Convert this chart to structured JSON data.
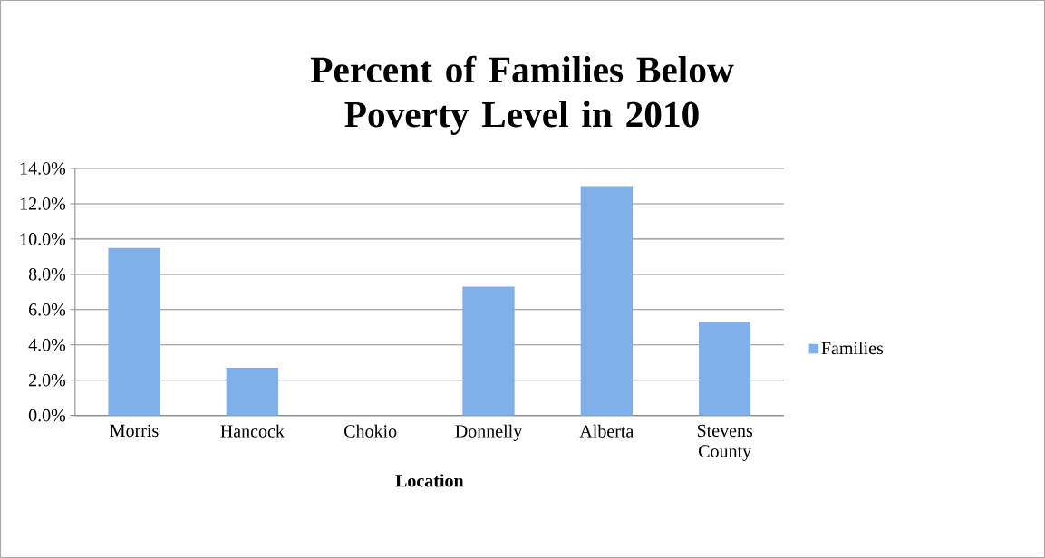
{
  "chart_data": {
    "type": "bar",
    "title": "Percent of Families Below Poverty Level in 2010",
    "xlabel": "Location",
    "categories": [
      "Morris",
      "Hancock",
      "Chokio",
      "Donnelly",
      "Alberta",
      "Stevens County"
    ],
    "series": [
      {
        "name": "Families",
        "color": "#7fb0ea",
        "values": [
          9.5,
          2.7,
          0,
          7.3,
          13.0,
          5.3
        ]
      }
    ],
    "ylim": [
      0,
      14
    ],
    "yticks": [
      {
        "value": 0,
        "label": "0.0%"
      },
      {
        "value": 2,
        "label": "2.0%"
      },
      {
        "value": 4,
        "label": "4.0%"
      },
      {
        "value": 6,
        "label": "6.0%"
      },
      {
        "value": 8,
        "label": "8.0%"
      },
      {
        "value": 10,
        "label": "10.0%"
      },
      {
        "value": 12,
        "label": "12.0%"
      },
      {
        "value": 14,
        "label": "14.0%"
      }
    ],
    "grid": "y",
    "legend": "right"
  }
}
